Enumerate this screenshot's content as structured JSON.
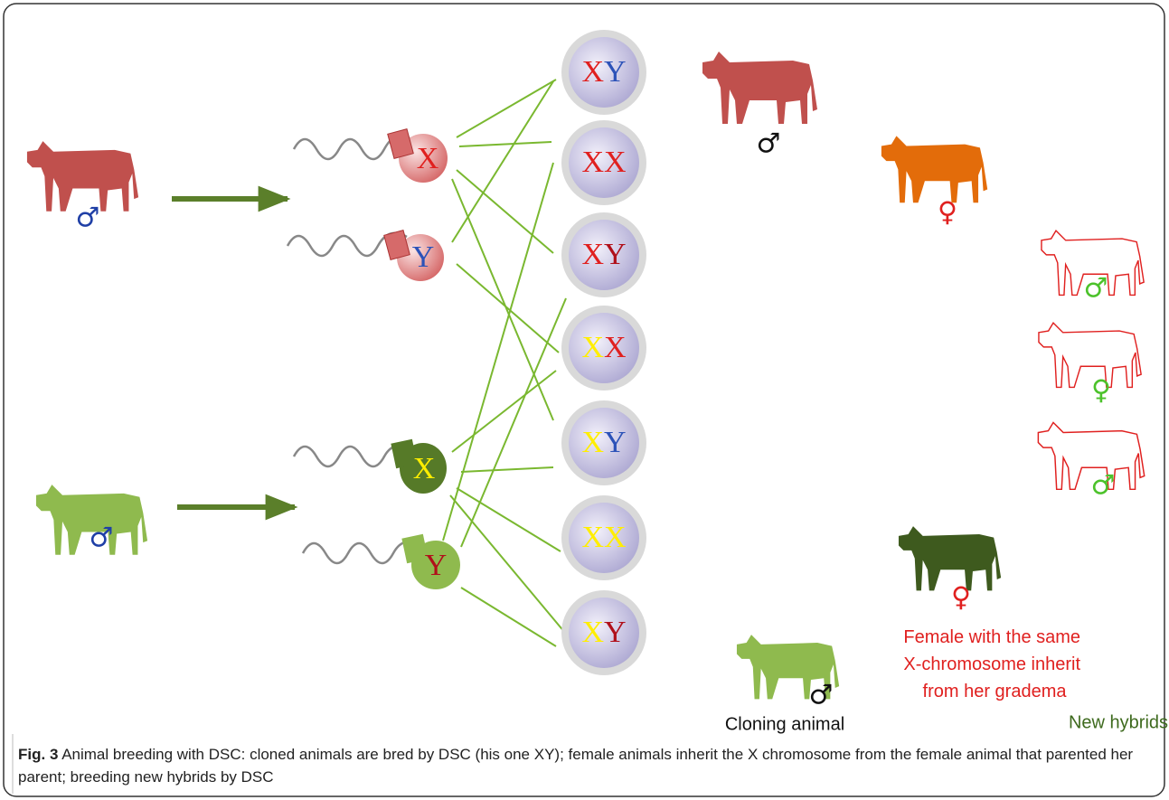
{
  "parents": [
    {
      "symbol": "♂"
    },
    {
      "symbol": "♂"
    }
  ],
  "sperm": [
    {
      "chromosome": "X"
    },
    {
      "chromosome": "Y"
    },
    {
      "chromosome": "X"
    },
    {
      "chromosome": "Y"
    }
  ],
  "zygotes": [
    [
      "X",
      "Y"
    ],
    [
      "X",
      "X"
    ],
    [
      "X",
      "Y"
    ],
    [
      "X",
      "X"
    ],
    [
      "X",
      "Y"
    ],
    [
      "X",
      "X"
    ],
    [
      "X",
      "Y"
    ]
  ],
  "offspring": {
    "top_male": "♂",
    "orange_female": "♀",
    "hybrids": [
      "♂",
      "♀",
      "♂"
    ],
    "dark_female": "♀",
    "clone": "♂"
  },
  "labels": {
    "female_note": [
      "Female with the same",
      "X-chromosome inherit",
      "from her gradema"
    ],
    "cloning": "Cloning animal",
    "hybrids": "New hybrids"
  },
  "caption": {
    "label": "Fig. 3",
    "text": "Animal breeding with DSC: cloned animals are bred by DSC (his one XY); female animals inherit the X chromosome from the female animal that parented her parent; breeding new hybrids by DSC"
  }
}
